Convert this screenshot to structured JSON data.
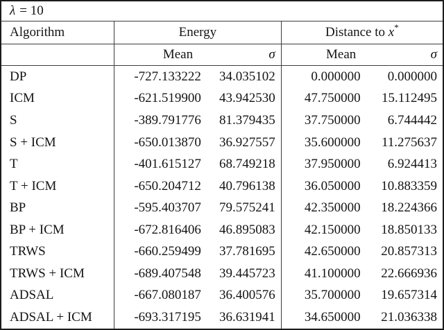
{
  "table": {
    "title": {
      "var": "λ",
      "rest": "= 10"
    },
    "headers": {
      "algorithm": "Algorithm",
      "energy": "Energy",
      "distance_prefix": "Distance to",
      "distance_var": "x",
      "distance_sup": "*",
      "mean": "Mean",
      "sigma": "σ"
    },
    "rows": [
      {
        "algorithm": "DP",
        "energy_mean": "-727.133222",
        "energy_sigma": "34.035102",
        "dist_mean": "0.000000",
        "dist_sigma": "0.000000"
      },
      {
        "algorithm": "ICM",
        "energy_mean": "-621.519900",
        "energy_sigma": "43.942530",
        "dist_mean": "47.750000",
        "dist_sigma": "15.112495"
      },
      {
        "algorithm": "S",
        "energy_mean": "-389.791776",
        "energy_sigma": "81.379435",
        "dist_mean": "37.750000",
        "dist_sigma": "6.744442"
      },
      {
        "algorithm": "S + ICM",
        "energy_mean": "-650.013870",
        "energy_sigma": "36.927557",
        "dist_mean": "35.600000",
        "dist_sigma": "11.275637"
      },
      {
        "algorithm": "T",
        "energy_mean": "-401.615127",
        "energy_sigma": "68.749218",
        "dist_mean": "37.950000",
        "dist_sigma": "6.924413"
      },
      {
        "algorithm": "T + ICM",
        "energy_mean": "-650.204712",
        "energy_sigma": "40.796138",
        "dist_mean": "36.050000",
        "dist_sigma": "10.883359"
      },
      {
        "algorithm": "BP",
        "energy_mean": "-595.403707",
        "energy_sigma": "79.575241",
        "dist_mean": "42.350000",
        "dist_sigma": "18.224366"
      },
      {
        "algorithm": "BP + ICM",
        "energy_mean": "-672.816406",
        "energy_sigma": "46.895083",
        "dist_mean": "42.150000",
        "dist_sigma": "18.850133"
      },
      {
        "algorithm": "TRWS",
        "energy_mean": "-660.259499",
        "energy_sigma": "37.781695",
        "dist_mean": "42.650000",
        "dist_sigma": "20.857313"
      },
      {
        "algorithm": "TRWS + ICM",
        "energy_mean": "-689.407548",
        "energy_sigma": "39.445723",
        "dist_mean": "41.100000",
        "dist_sigma": "22.666936"
      },
      {
        "algorithm": "ADSAL",
        "energy_mean": "-667.080187",
        "energy_sigma": "36.400576",
        "dist_mean": "35.700000",
        "dist_sigma": "19.657314"
      },
      {
        "algorithm": "ADSAL + ICM",
        "energy_mean": "-693.317195",
        "energy_sigma": "36.631941",
        "dist_mean": "34.650000",
        "dist_sigma": "21.036338"
      }
    ]
  }
}
